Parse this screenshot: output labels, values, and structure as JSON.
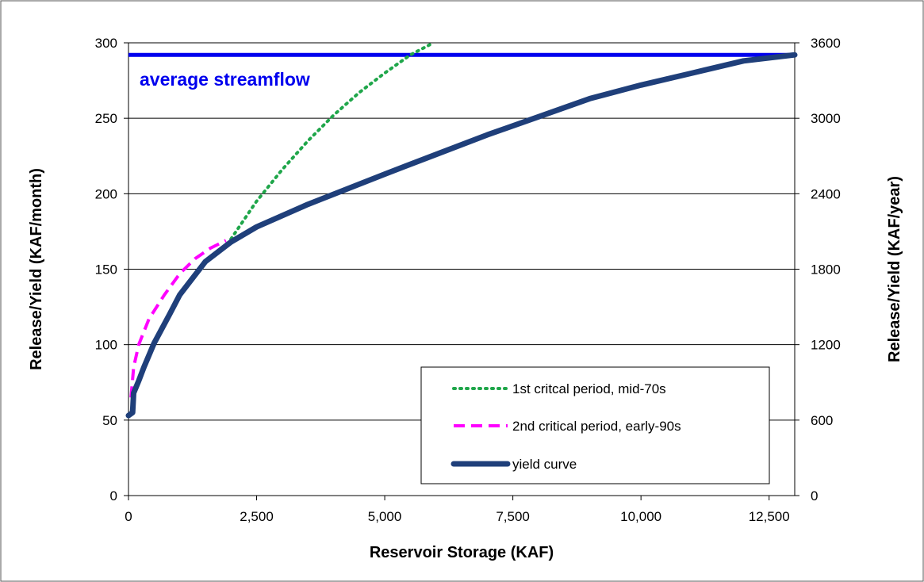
{
  "chart_data": {
    "type": "line",
    "title": "",
    "xlabel": "Reservoir Storage (KAF)",
    "ylabel": "Release/Yield (KAF/month)",
    "y2label": "Release/Yield (KAF/year)",
    "xlim": [
      0,
      13000
    ],
    "ylim": [
      0,
      300
    ],
    "y2lim": [
      0,
      3600
    ],
    "x_ticks": [
      0,
      2500,
      5000,
      7500,
      10000,
      12500
    ],
    "x_tick_labels": [
      "0",
      "2,500",
      "5,000",
      "7,500",
      "10,000",
      "12,500"
    ],
    "y_ticks": [
      0,
      50,
      100,
      150,
      200,
      250,
      300
    ],
    "y_tick_labels": [
      "0",
      "50",
      "100",
      "150",
      "200",
      "250",
      "300"
    ],
    "y2_ticks": [
      0,
      600,
      1200,
      1800,
      2400,
      3000,
      3600
    ],
    "y2_tick_labels": [
      "0",
      "600",
      "1200",
      "1800",
      "2400",
      "3000",
      "3600"
    ],
    "grid": "horizontal",
    "legend_position": "bottom-right",
    "colors": {
      "average": "#0000ee",
      "first": "#1fa64a",
      "second": "#ff00ff",
      "yield": "#1f3f7a"
    },
    "annotations": [
      {
        "text": "average streamflow",
        "color": "#0000ee"
      }
    ],
    "reference_lines": [
      {
        "label": "average streamflow",
        "y": 292
      }
    ],
    "series": [
      {
        "name": "1st critcal period, mid-70s",
        "style": "dotted",
        "color": "#1fa64a",
        "x": [
          2000,
          2500,
          3000,
          3500,
          4000,
          4500,
          5000,
          5500,
          5950
        ],
        "y": [
          170,
          195,
          216,
          235,
          252,
          267,
          280,
          292,
          300
        ]
      },
      {
        "name": "2nd critical period, early-90s",
        "style": "dashed",
        "color": "#ff00ff",
        "x": [
          50,
          100,
          200,
          400,
          700,
          1000,
          1300,
          1600,
          1900
        ],
        "y": [
          65,
          85,
          100,
          117,
          133,
          147,
          157,
          164,
          169
        ]
      },
      {
        "name": "yield curve",
        "style": "solid",
        "color": "#1f3f7a",
        "x": [
          0,
          80,
          100,
          200,
          300,
          500,
          800,
          1000,
          1500,
          2000,
          2500,
          3500,
          5000,
          6000,
          7000,
          8000,
          9000,
          10000,
          11000,
          12000,
          13000
        ],
        "y": [
          53,
          55,
          68,
          76,
          85,
          101,
          120,
          133,
          155,
          168,
          178,
          193,
          213,
          226,
          239,
          251,
          263,
          272,
          280,
          288,
          292
        ]
      }
    ]
  }
}
